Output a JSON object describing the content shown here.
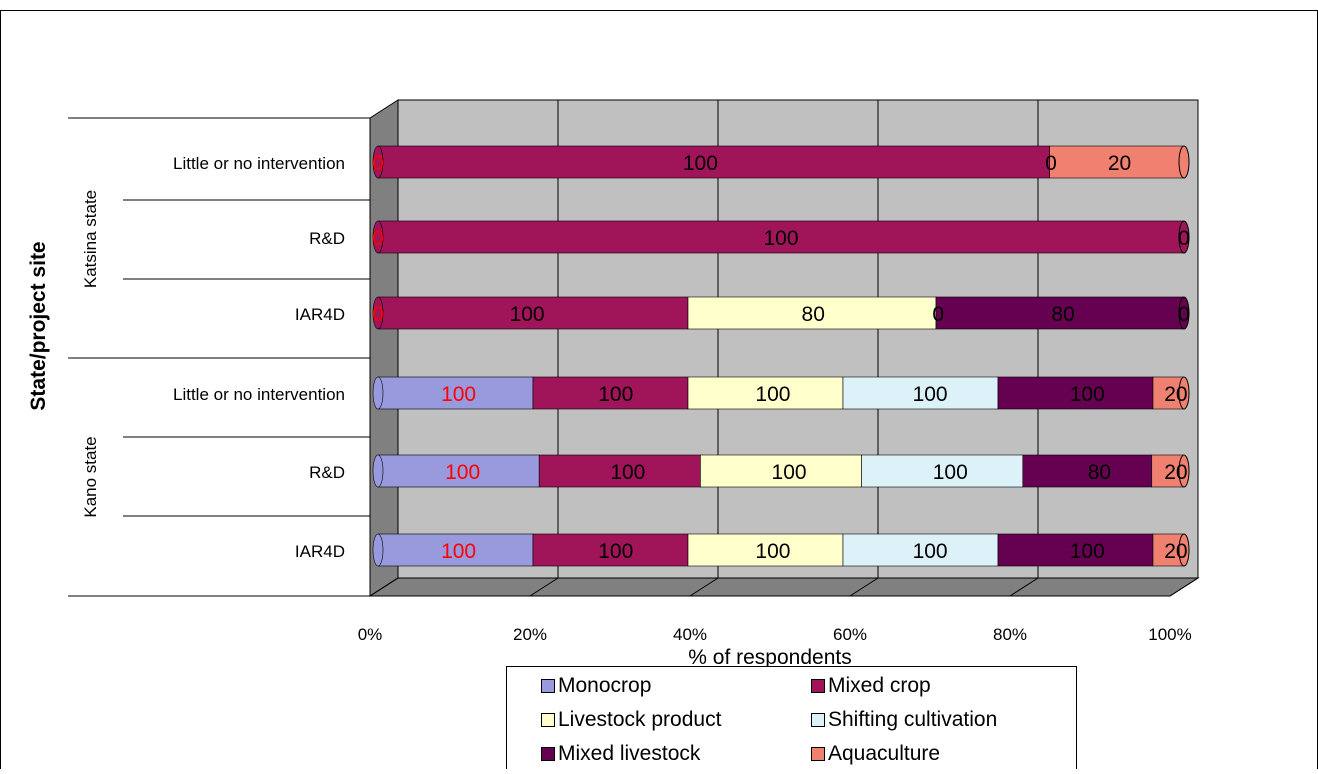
{
  "chart_data": {
    "type": "bar",
    "orientation": "horizontal",
    "stacking": "percent",
    "three_d": true,
    "xlabel": "% of respondents",
    "ylabel": "State/project site",
    "xlim": [
      0,
      100
    ],
    "x_ticks": [
      "0%",
      "20%",
      "40%",
      "60%",
      "80%",
      "100%"
    ],
    "grid": true,
    "legend_position": "bottom",
    "groups": [
      {
        "label": "Katsina  state",
        "sites": [
          "Little or no intervention",
          "R&D",
          "IAR4D"
        ]
      },
      {
        "label": "Kano state",
        "sites": [
          "Little or no intervention",
          "R&D",
          "IAR4D"
        ]
      }
    ],
    "categories": [
      "Little or no intervention",
      "R&D",
      "IAR4D",
      "Little or no intervention",
      "R&D",
      "IAR4D"
    ],
    "series": [
      {
        "name": "Monocrop",
        "color": "#9999dd",
        "values": [
          0,
          0,
          0,
          100,
          100,
          100
        ]
      },
      {
        "name": "Mixed crop",
        "color": "#a0145a",
        "values": [
          100,
          100,
          100,
          100,
          100,
          100
        ]
      },
      {
        "name": "Livestock product",
        "color": "#ffffcc",
        "values": [
          0,
          0,
          80,
          100,
          100,
          100
        ]
      },
      {
        "name": "Shifting cultivation",
        "color": "#dcf2f8",
        "values": [
          0,
          0,
          0,
          100,
          100,
          100
        ]
      },
      {
        "name": "Mixed livestock",
        "color": "#660050",
        "values": [
          0,
          0,
          80,
          100,
          80,
          100
        ]
      },
      {
        "name": "Aquaculture",
        "color": "#f08070",
        "values": [
          20,
          0,
          0,
          20,
          20,
          20
        ]
      }
    ],
    "data_labels": [
      [
        {
          "text": "0",
          "color": "#ff0000",
          "pos": 0
        },
        {
          "text": "100",
          "color": "#000000",
          "pos": 40
        },
        {
          "text": "0",
          "color": "#000000",
          "pos": 83.5
        },
        {
          "text": "20",
          "color": "#000000",
          "pos": 92
        }
      ],
      [
        {
          "text": "0",
          "color": "#ff0000",
          "pos": 0
        },
        {
          "text": "100",
          "color": "#000000",
          "pos": 50
        },
        {
          "text": "0",
          "color": "#000000",
          "pos": 100
        }
      ],
      [
        {
          "text": "0",
          "color": "#ff0000",
          "pos": 0
        },
        {
          "text": "100",
          "color": "#000000",
          "pos": 18.5
        },
        {
          "text": "80",
          "color": "#000000",
          "pos": 54
        },
        {
          "text": "0",
          "color": "#000000",
          "pos": 69.5
        },
        {
          "text": "80",
          "color": "#000000",
          "pos": 85
        },
        {
          "text": "0",
          "color": "#000000",
          "pos": 100
        }
      ],
      [
        {
          "text": "100",
          "color": "#ff0000",
          "pos": 10
        },
        {
          "text": "100",
          "color": "#000000",
          "pos": 29.5
        },
        {
          "text": "100",
          "color": "#000000",
          "pos": 49
        },
        {
          "text": "100",
          "color": "#000000",
          "pos": 68.5
        },
        {
          "text": "100",
          "color": "#000000",
          "pos": 88
        },
        {
          "text": "20",
          "color": "#000000",
          "pos": 99
        }
      ],
      [
        {
          "text": "100",
          "color": "#ff0000",
          "pos": 10.5
        },
        {
          "text": "100",
          "color": "#000000",
          "pos": 31
        },
        {
          "text": "100",
          "color": "#000000",
          "pos": 51
        },
        {
          "text": "100",
          "color": "#000000",
          "pos": 71
        },
        {
          "text": "80",
          "color": "#000000",
          "pos": 89.5
        },
        {
          "text": "20",
          "color": "#000000",
          "pos": 99
        }
      ],
      [
        {
          "text": "100",
          "color": "#ff0000",
          "pos": 10
        },
        {
          "text": "100",
          "color": "#000000",
          "pos": 29.5
        },
        {
          "text": "100",
          "color": "#000000",
          "pos": 49
        },
        {
          "text": "100",
          "color": "#000000",
          "pos": 68.5
        },
        {
          "text": "100",
          "color": "#000000",
          "pos": 88
        },
        {
          "text": "20",
          "color": "#000000",
          "pos": 99
        }
      ]
    ]
  }
}
